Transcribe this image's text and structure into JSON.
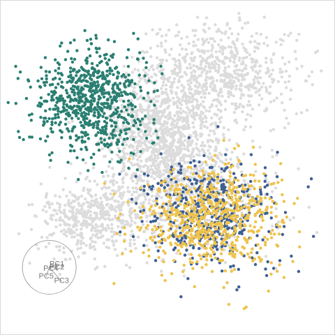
{
  "chart_data": {
    "type": "scatter",
    "title": "",
    "xlabel": "",
    "ylabel": "",
    "grid": false,
    "legend": "none",
    "xlim": [
      -1,
      1
    ],
    "ylim": [
      -1,
      1
    ],
    "series": [
      {
        "color": "#dcdcdc",
        "role": "background",
        "clusters": [
          {
            "cx": 0.33,
            "cy": 0.6,
            "sx": 0.25,
            "sy": 0.16,
            "n": 700
          },
          {
            "cx": -0.05,
            "cy": 0.2,
            "sx": 0.2,
            "sy": 0.2,
            "n": 1000
          },
          {
            "cx": -0.5,
            "cy": -0.33,
            "sx": 0.17,
            "sy": 0.12,
            "n": 450
          },
          {
            "cx": 0.12,
            "cy": -0.17,
            "sx": 0.3,
            "sy": 0.2,
            "n": 500
          }
        ]
      },
      {
        "color": "#2a7f72",
        "role": "group-1",
        "clusters": [
          {
            "cx": -0.5,
            "cy": 0.43,
            "sx": 0.18,
            "sy": 0.17,
            "n": 750
          }
        ]
      },
      {
        "color": "#3d5f94",
        "role": "group-2",
        "clusters": [
          {
            "cx": 0.27,
            "cy": -0.28,
            "sx": 0.22,
            "sy": 0.17,
            "n": 500
          }
        ]
      },
      {
        "color": "#eec34c",
        "role": "group-3",
        "clusters": [
          {
            "cx": 0.3,
            "cy": -0.33,
            "sx": 0.23,
            "sy": 0.17,
            "n": 700
          }
        ]
      }
    ],
    "biplot": {
      "center": [
        -0.77,
        -0.65
      ],
      "radius": 0.175,
      "axes": [
        {
          "label": "PC1",
          "x": -0.72,
          "y": -0.63
        },
        {
          "label": "PC2",
          "x": -0.72,
          "y": -0.65
        },
        {
          "label": "PC3",
          "x": -0.69,
          "y": -0.74
        },
        {
          "label": "PC4",
          "x": -0.76,
          "y": -0.66
        },
        {
          "label": "PC5",
          "x": -0.79,
          "y": -0.71
        }
      ]
    }
  }
}
